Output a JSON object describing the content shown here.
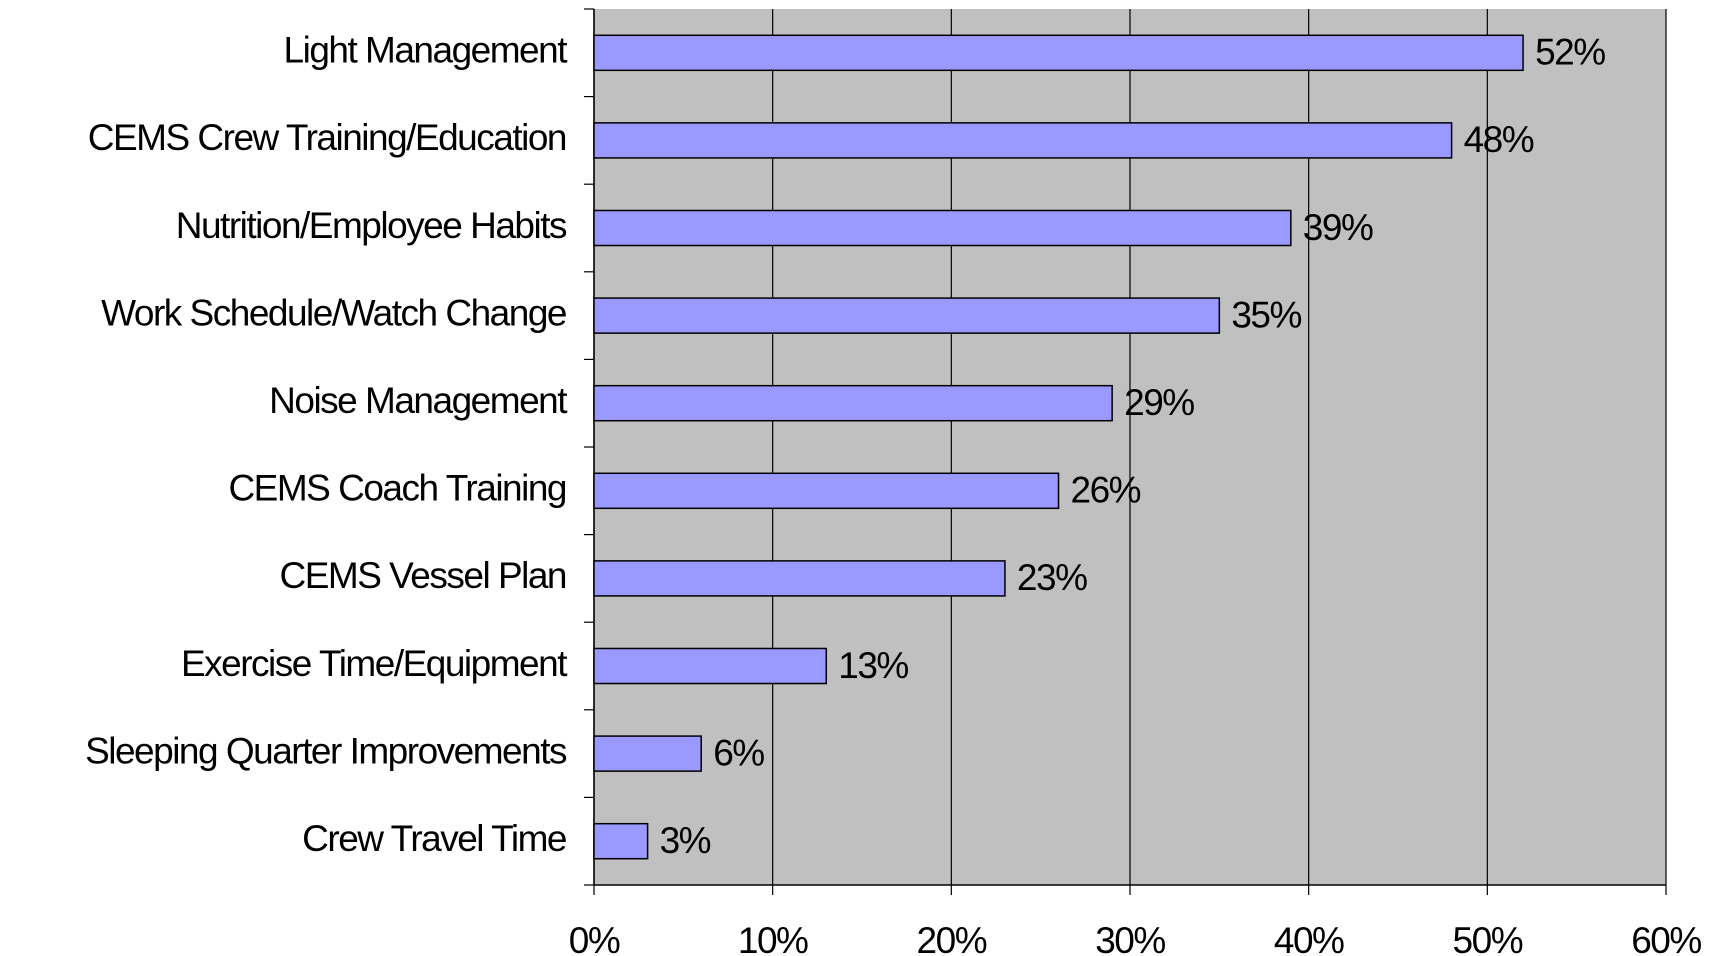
{
  "chart_data": {
    "type": "barh",
    "categories": [
      "Light Management",
      "CEMS Crew Training/Education",
      "Nutrition/Employee Habits",
      "Work Schedule/Watch Change",
      "Noise Management",
      "CEMS Coach Training",
      "CEMS Vessel Plan",
      "Exercise Time/Equipment",
      "Sleeping Quarter Improvements",
      "Crew Travel Time"
    ],
    "values": [
      52,
      48,
      39,
      35,
      29,
      26,
      23,
      13,
      6,
      3
    ],
    "value_labels": [
      "52%",
      "48%",
      "39%",
      "35%",
      "29%",
      "26%",
      "23%",
      "13%",
      "6%",
      "3%"
    ],
    "color": "#9999ff",
    "xlim": [
      0,
      60
    ],
    "xticks": [
      {
        "value": 0,
        "label": "0%"
      },
      {
        "value": 10,
        "label": "10%"
      },
      {
        "value": 20,
        "label": "20%"
      },
      {
        "value": 30,
        "label": "30%"
      },
      {
        "value": 40,
        "label": "40%"
      },
      {
        "value": 50,
        "label": "50%"
      },
      {
        "value": 60,
        "label": "60%"
      }
    ],
    "grid": true
  }
}
